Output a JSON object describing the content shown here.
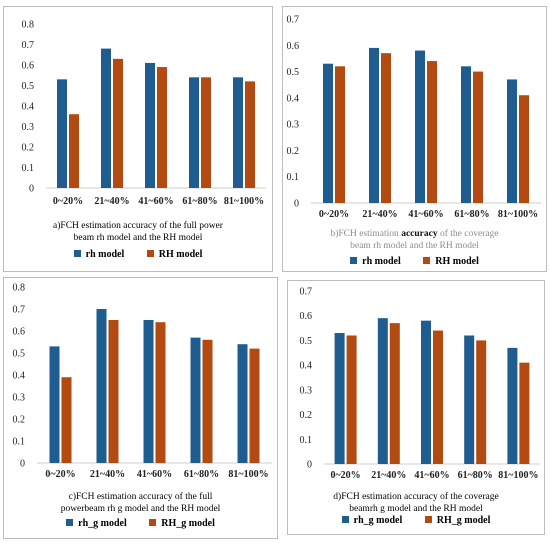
{
  "colors": {
    "series_a": "#1f5c8f",
    "series_b": "#b24a12",
    "axis": "#cfcfcf"
  },
  "chart_data": [
    {
      "type": "bar",
      "categories": [
        "0~20%",
        "21~40%",
        "41~60%",
        "61~80%",
        "81~100%"
      ],
      "series": [
        {
          "name": "rh model",
          "values": [
            0.53,
            0.68,
            0.61,
            0.54,
            0.54
          ]
        },
        {
          "name": "RH model",
          "values": [
            0.36,
            0.63,
            0.59,
            0.54,
            0.52
          ]
        }
      ],
      "yticks": [
        "0",
        "0.1",
        "0.2",
        "0.3",
        "0.4",
        "0.5",
        "0.6",
        "0.7",
        "0.8"
      ],
      "ylim": [
        0,
        0.8
      ],
      "caption": [
        "a)FCH estimation accuracy of the full power",
        "beam rh model and the RH model"
      ],
      "legend": "bottom"
    },
    {
      "type": "bar",
      "categories": [
        "0~20%",
        "21~40%",
        "41~60%",
        "61~80%",
        "81~100%"
      ],
      "series": [
        {
          "name": "rh model",
          "values": [
            0.53,
            0.59,
            0.58,
            0.52,
            0.47
          ]
        },
        {
          "name": "RH model",
          "values": [
            0.52,
            0.57,
            0.54,
            0.5,
            0.41
          ]
        }
      ],
      "yticks": [
        "0",
        "0.1",
        "0.2",
        "0.3",
        "0.4",
        "0.5",
        "0.6",
        "0.7"
      ],
      "ylim": [
        0,
        0.7
      ],
      "caption_line1": {
        "before": "b)FCH estimation ",
        "bold": "accuracy",
        "after": " of the coverage"
      },
      "caption_line2": "beam rh model and the RH model",
      "legend": "bottom"
    },
    {
      "type": "bar",
      "categories": [
        "0~20%",
        "21~40%",
        "41~60%",
        "61~80%",
        "81~100%"
      ],
      "series": [
        {
          "name": "rh_g model",
          "values": [
            0.53,
            0.7,
            0.65,
            0.57,
            0.54
          ]
        },
        {
          "name": "RH_g model",
          "values": [
            0.39,
            0.65,
            0.64,
            0.56,
            0.52
          ]
        }
      ],
      "yticks": [
        "0",
        "0.1",
        "0.2",
        "0.3",
        "0.4",
        "0.5",
        "0.6",
        "0.7",
        "0.8"
      ],
      "ylim": [
        0,
        0.8
      ],
      "caption": [
        "c)FCH estimation accuracy of the full",
        "powerbeam rh g model and the RH model"
      ],
      "legend": "bottom"
    },
    {
      "type": "bar",
      "categories": [
        "0~20%",
        "21~40%",
        "41~60%",
        "61~80%",
        "81~100%"
      ],
      "series": [
        {
          "name": "rh_g model",
          "values": [
            0.53,
            0.59,
            0.58,
            0.52,
            0.47
          ]
        },
        {
          "name": "RH_g model",
          "values": [
            0.52,
            0.57,
            0.54,
            0.5,
            0.41
          ]
        }
      ],
      "yticks": [
        "0",
        "0.1",
        "0.2",
        "0.3",
        "0.4",
        "0.5",
        "0.6",
        "0.7"
      ],
      "ylim": [
        0,
        0.7
      ],
      "caption": [
        "d)FCH estimation accuracy of the coverage",
        "beamrh g model and the RH model"
      ],
      "legend": "bottom"
    }
  ]
}
